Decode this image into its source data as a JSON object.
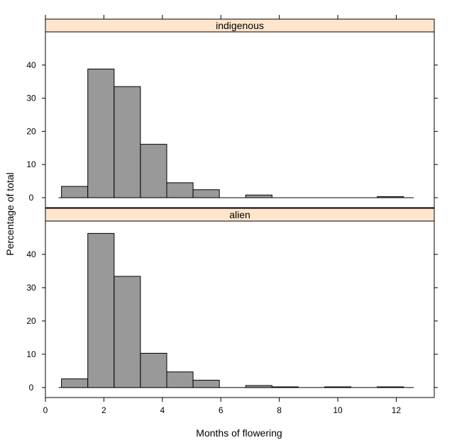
{
  "chart_data": {
    "type": "bar",
    "layout": "lattice histogram, 2 stacked panels with shared x axis",
    "xlabel": "Months of flowering",
    "ylabel": "Percentage of total",
    "xlim": [
      0,
      13.3
    ],
    "ylim": [
      -3,
      50
    ],
    "x_ticks": [
      0,
      2,
      4,
      6,
      8,
      10,
      12
    ],
    "y_ticks": [
      0,
      10,
      20,
      30,
      40
    ],
    "bin_edges": [
      0.55,
      1.45,
      2.35,
      3.25,
      4.15,
      5.05,
      5.95,
      6.85,
      7.75,
      8.65,
      9.55,
      10.45,
      11.35,
      12.25
    ],
    "baseline_range": [
      0.45,
      12.6
    ],
    "panels": [
      {
        "strip": "indigenous",
        "values": [
          3.4,
          38.8,
          33.5,
          16.1,
          4.5,
          2.4,
          0,
          0.8,
          0,
          0,
          0,
          0,
          0.3
        ]
      },
      {
        "strip": "alien",
        "values": [
          2.6,
          46.3,
          33.4,
          10.3,
          4.7,
          2.2,
          0,
          0.6,
          0.2,
          0,
          0.2,
          0,
          0.2
        ]
      }
    ]
  }
}
